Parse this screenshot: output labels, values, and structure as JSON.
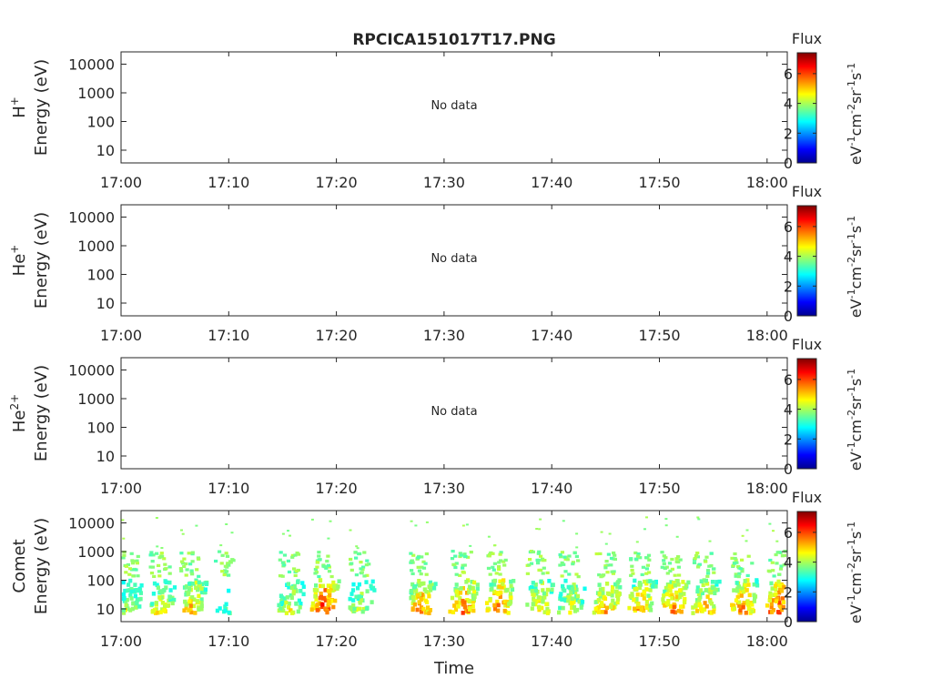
{
  "title": "RPCICA151017T17.PNG",
  "xlabel": "Time",
  "colorbar": {
    "label": "Flux",
    "unit_base": [
      "eV",
      "cm",
      "sr",
      "s"
    ],
    "unit_exp": [
      "-1",
      "-2",
      "-1",
      "-1"
    ],
    "ticks": [
      "0",
      "2",
      "4",
      "6"
    ],
    "range": [
      0,
      7.4
    ],
    "colormap": "jet"
  },
  "x_ticks": [
    "17:00",
    "17:10",
    "17:20",
    "17:30",
    "17:40",
    "17:50",
    "18:00"
  ],
  "y_ticks": [
    "10",
    "100",
    "1000",
    "10000"
  ],
  "y_unit": "Energy (eV)",
  "panels": [
    {
      "species": "H",
      "species_sup": "+",
      "no_data": "No data"
    },
    {
      "species": "He",
      "species_sup": "+",
      "no_data": "No data"
    },
    {
      "species": "He",
      "species_sup": "2+",
      "no_data": "No data"
    },
    {
      "species": "Comet",
      "species_sup": "",
      "no_data": ""
    }
  ],
  "chart_data": {
    "type": "heatmap",
    "title": "RPCICA151017T17.PNG",
    "xlabel": "Time",
    "ylabel": "Energy (eV)",
    "x_range": [
      "17:00",
      "18:02"
    ],
    "y_scale": "log",
    "y_range": [
      6,
      50000
    ],
    "colorbar_range": [
      0,
      7.4
    ],
    "panels": [
      {
        "name": "H+",
        "status": "No data"
      },
      {
        "name": "He+",
        "status": "No data"
      },
      {
        "name": "He2+",
        "status": "No data"
      },
      {
        "name": "Comet",
        "bursts": [
          {
            "time_min": 0.5,
            "peak_flux": 5.0
          },
          {
            "time_min": 3.5,
            "peak_flux": 5.3
          },
          {
            "time_min": 6.3,
            "peak_flux": 5.8
          },
          {
            "time_min": 9.5,
            "peak_flux": 4.0
          },
          {
            "time_min": 15.5,
            "peak_flux": 5.2
          },
          {
            "time_min": 18.5,
            "peak_flux": 6.8
          },
          {
            "time_min": 22.0,
            "peak_flux": 5.0
          },
          {
            "time_min": 27.5,
            "peak_flux": 6.2
          },
          {
            "time_min": 31.5,
            "peak_flux": 6.3
          },
          {
            "time_min": 34.8,
            "peak_flux": 6.4
          },
          {
            "time_min": 38.5,
            "peak_flux": 5.7
          },
          {
            "time_min": 41.5,
            "peak_flux": 5.3
          },
          {
            "time_min": 44.8,
            "peak_flux": 6.0
          },
          {
            "time_min": 48.0,
            "peak_flux": 6.0
          },
          {
            "time_min": 51.0,
            "peak_flux": 6.2
          },
          {
            "time_min": 54.0,
            "peak_flux": 5.8
          },
          {
            "time_min": 57.5,
            "peak_flux": 6.2
          },
          {
            "time_min": 60.8,
            "peak_flux": 6.6
          }
        ]
      }
    ]
  }
}
